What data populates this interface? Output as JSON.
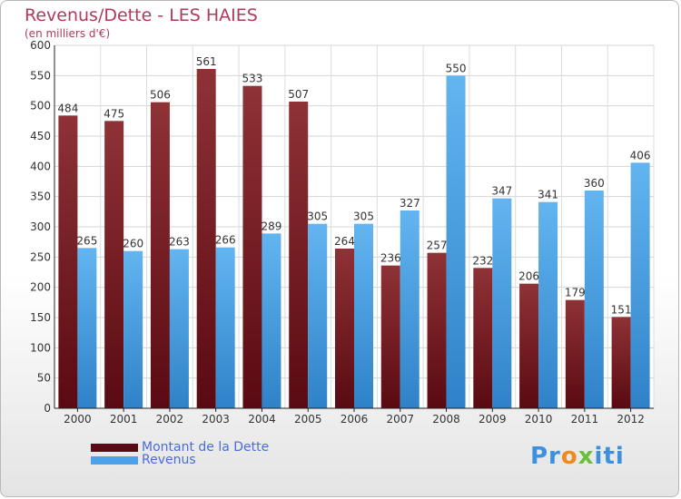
{
  "header": {
    "title": "Revenus/Dette - LES HAIES",
    "subtitle": "(en milliers d'€)"
  },
  "legend": {
    "debt_label": "Montant de la Dette",
    "revenue_label": "Revenus"
  },
  "logo": {
    "text": "Proxiti",
    "parts": [
      "Pr",
      "o",
      "x",
      "iti"
    ]
  },
  "colors": {
    "debt": "#7a1a22",
    "debt_light": "#8e3236",
    "revenue": "#4aa3e8",
    "revenue_light": "#62b5f0"
  },
  "chart_data": {
    "type": "bar",
    "title": "Revenus/Dette - LES HAIES",
    "subtitle": "(en milliers d'€)",
    "xlabel": "",
    "ylabel": "",
    "ylim": [
      0,
      600
    ],
    "yticks": [
      0,
      50,
      100,
      150,
      200,
      250,
      300,
      350,
      400,
      450,
      500,
      550,
      600
    ],
    "grid": true,
    "legend_position": "bottom-left",
    "categories": [
      "2000",
      "2001",
      "2002",
      "2003",
      "2004",
      "2005",
      "2006",
      "2007",
      "2008",
      "2009",
      "2010",
      "2011",
      "2012"
    ],
    "series": [
      {
        "name": "Montant de la Dette",
        "values": [
          484,
          475,
          506,
          561,
          533,
          507,
          264,
          236,
          257,
          232,
          206,
          179,
          151
        ]
      },
      {
        "name": "Revenus",
        "values": [
          265,
          260,
          263,
          266,
          289,
          305,
          305,
          327,
          550,
          347,
          341,
          360,
          406
        ]
      }
    ]
  }
}
